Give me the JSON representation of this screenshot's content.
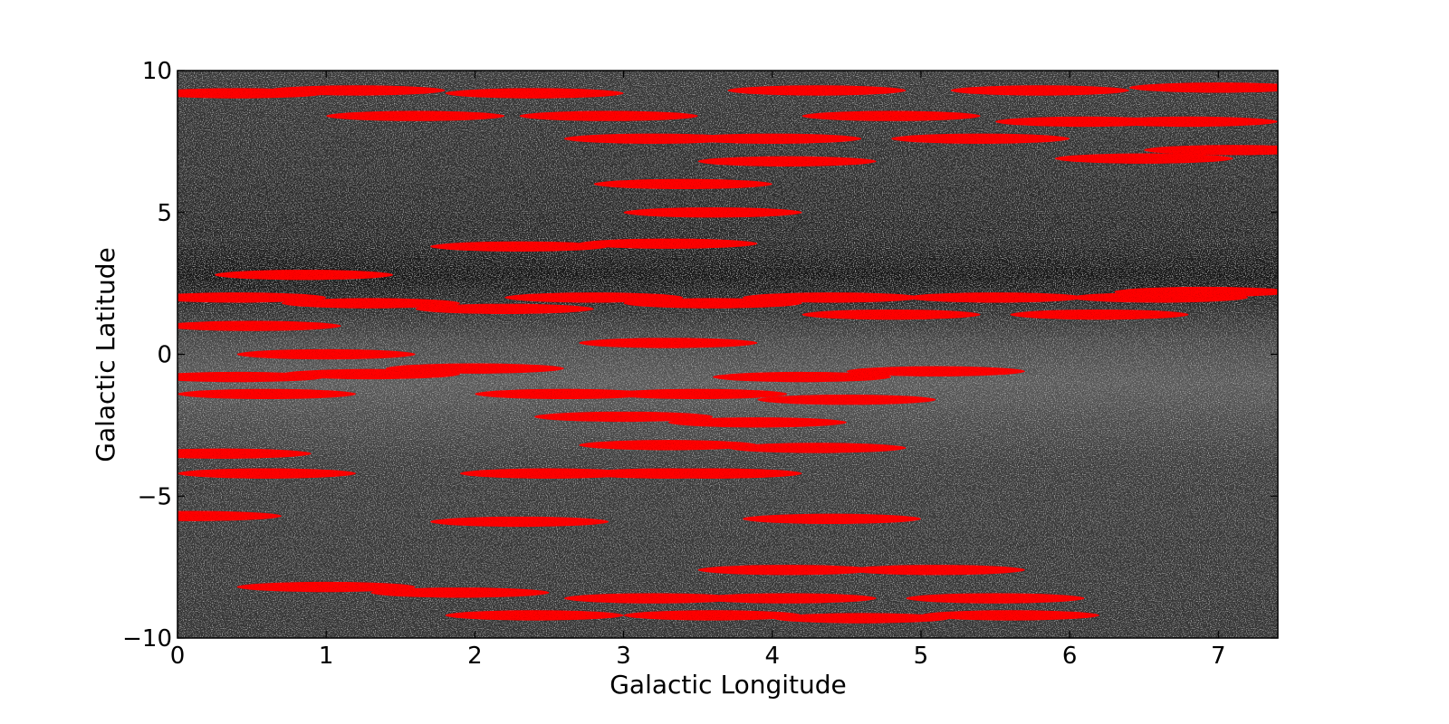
{
  "chart_data": {
    "type": "scatter",
    "title": "",
    "xlabel": "Galactic Longitude",
    "ylabel": "Galactic Latitude",
    "xlim": [
      0,
      7.4
    ],
    "ylim": [
      -10,
      10
    ],
    "x_ticks": [
      0,
      1,
      2,
      3,
      4,
      5,
      6,
      7
    ],
    "x_tick_labels": [
      "0",
      "1",
      "2",
      "3",
      "4",
      "5",
      "6",
      "7"
    ],
    "y_ticks": [
      -10,
      -5,
      0,
      5,
      10
    ],
    "y_tick_labels": [
      "−10",
      "−5",
      "0",
      "5",
      "10"
    ],
    "background": "grayscale sky image",
    "overlay_color": "#ff0000",
    "overlay_shape": "ellipse",
    "series": [
      {
        "values": [
          {
            "x": 0.4,
            "y": 9.2,
            "rx": 0.6,
            "ry": 0.6
          },
          {
            "x": 1.2,
            "y": 9.3,
            "rx": 0.6,
            "ry": 0.6
          },
          {
            "x": 1.6,
            "y": 8.4,
            "rx": 0.6,
            "ry": 0.6
          },
          {
            "x": 2.4,
            "y": 9.2,
            "rx": 0.6,
            "ry": 0.6
          },
          {
            "x": 2.9,
            "y": 8.4,
            "rx": 0.6,
            "ry": 0.6
          },
          {
            "x": 3.2,
            "y": 7.6,
            "rx": 0.6,
            "ry": 0.6
          },
          {
            "x": 4.0,
            "y": 7.6,
            "rx": 0.6,
            "ry": 0.6
          },
          {
            "x": 4.1,
            "y": 6.8,
            "rx": 0.6,
            "ry": 0.6
          },
          {
            "x": 3.4,
            "y": 6.0,
            "rx": 0.6,
            "ry": 0.6
          },
          {
            "x": 3.6,
            "y": 5.0,
            "rx": 0.6,
            "ry": 0.6
          },
          {
            "x": 2.3,
            "y": 3.8,
            "rx": 0.6,
            "ry": 0.6
          },
          {
            "x": 3.3,
            "y": 3.9,
            "rx": 0.6,
            "ry": 0.6
          },
          {
            "x": 4.3,
            "y": 9.3,
            "rx": 0.6,
            "ry": 0.6
          },
          {
            "x": 4.8,
            "y": 8.4,
            "rx": 0.6,
            "ry": 0.6
          },
          {
            "x": 5.4,
            "y": 7.6,
            "rx": 0.6,
            "ry": 0.6
          },
          {
            "x": 5.8,
            "y": 9.3,
            "rx": 0.6,
            "ry": 0.6
          },
          {
            "x": 6.1,
            "y": 8.2,
            "rx": 0.6,
            "ry": 0.6
          },
          {
            "x": 6.5,
            "y": 6.9,
            "rx": 0.6,
            "ry": 0.6
          },
          {
            "x": 6.8,
            "y": 8.2,
            "rx": 0.6,
            "ry": 0.6
          },
          {
            "x": 7.0,
            "y": 9.4,
            "rx": 0.6,
            "ry": 0.6
          },
          {
            "x": 7.1,
            "y": 7.2,
            "rx": 0.6,
            "ry": 0.6
          },
          {
            "x": 0.85,
            "y": 2.8,
            "rx": 0.6,
            "ry": 0.6
          },
          {
            "x": 0.4,
            "y": 2.0,
            "rx": 0.6,
            "ry": 0.6
          },
          {
            "x": 0.5,
            "y": 1.0,
            "rx": 0.6,
            "ry": 0.6
          },
          {
            "x": 1.3,
            "y": 1.8,
            "rx": 0.6,
            "ry": 0.6
          },
          {
            "x": 1.0,
            "y": 0.0,
            "rx": 0.6,
            "ry": 0.6
          },
          {
            "x": 2.2,
            "y": 1.6,
            "rx": 0.6,
            "ry": 0.6
          },
          {
            "x": 2.8,
            "y": 2.0,
            "rx": 0.6,
            "ry": 0.6
          },
          {
            "x": 3.3,
            "y": 0.4,
            "rx": 0.6,
            "ry": 0.6
          },
          {
            "x": 3.6,
            "y": 1.8,
            "rx": 0.6,
            "ry": 0.6
          },
          {
            "x": 4.4,
            "y": 2.0,
            "rx": 0.6,
            "ry": 0.6
          },
          {
            "x": 4.8,
            "y": 1.4,
            "rx": 0.6,
            "ry": 0.6
          },
          {
            "x": 5.5,
            "y": 2.0,
            "rx": 0.6,
            "ry": 0.6
          },
          {
            "x": 6.2,
            "y": 1.4,
            "rx": 0.6,
            "ry": 0.6
          },
          {
            "x": 6.6,
            "y": 2.0,
            "rx": 0.6,
            "ry": 0.6
          },
          {
            "x": 6.9,
            "y": 2.2,
            "rx": 0.6,
            "ry": 0.6
          },
          {
            "x": 0.4,
            "y": -0.8,
            "rx": 0.6,
            "ry": 0.6
          },
          {
            "x": 0.6,
            "y": -1.4,
            "rx": 0.6,
            "ry": 0.6
          },
          {
            "x": 1.3,
            "y": -0.7,
            "rx": 0.6,
            "ry": 0.6
          },
          {
            "x": 2.0,
            "y": -0.5,
            "rx": 0.6,
            "ry": 0.6
          },
          {
            "x": 2.6,
            "y": -1.4,
            "rx": 0.6,
            "ry": 0.6
          },
          {
            "x": 3.0,
            "y": -2.2,
            "rx": 0.6,
            "ry": 0.6
          },
          {
            "x": 3.5,
            "y": -1.4,
            "rx": 0.6,
            "ry": 0.6
          },
          {
            "x": 4.2,
            "y": -0.8,
            "rx": 0.6,
            "ry": 0.6
          },
          {
            "x": 4.5,
            "y": -1.6,
            "rx": 0.6,
            "ry": 0.6
          },
          {
            "x": 5.1,
            "y": -0.6,
            "rx": 0.6,
            "ry": 0.6
          },
          {
            "x": 3.9,
            "y": -2.4,
            "rx": 0.6,
            "ry": 0.6
          },
          {
            "x": 3.3,
            "y": -3.2,
            "rx": 0.6,
            "ry": 0.6
          },
          {
            "x": 4.3,
            "y": -3.3,
            "rx": 0.6,
            "ry": 0.6
          },
          {
            "x": 2.5,
            "y": -4.2,
            "rx": 0.6,
            "ry": 0.6
          },
          {
            "x": 3.3,
            "y": -4.2,
            "rx": 0.6,
            "ry": 0.6
          },
          {
            "x": 3.6,
            "y": -4.2,
            "rx": 0.6,
            "ry": 0.6
          },
          {
            "x": 0.3,
            "y": -3.5,
            "rx": 0.6,
            "ry": 0.6
          },
          {
            "x": 0.6,
            "y": -4.2,
            "rx": 0.6,
            "ry": 0.6
          },
          {
            "x": 0.1,
            "y": -5.7,
            "rx": 0.6,
            "ry": 0.6
          },
          {
            "x": 2.3,
            "y": -5.9,
            "rx": 0.6,
            "ry": 0.6
          },
          {
            "x": 4.4,
            "y": -5.8,
            "rx": 0.6,
            "ry": 0.6
          },
          {
            "x": 1.0,
            "y": -8.2,
            "rx": 0.6,
            "ry": 0.6
          },
          {
            "x": 1.9,
            "y": -8.4,
            "rx": 0.6,
            "ry": 0.6
          },
          {
            "x": 2.4,
            "y": -9.2,
            "rx": 0.6,
            "ry": 0.6
          },
          {
            "x": 3.2,
            "y": -8.6,
            "rx": 0.6,
            "ry": 0.6
          },
          {
            "x": 3.6,
            "y": -9.2,
            "rx": 0.6,
            "ry": 0.6
          },
          {
            "x": 4.1,
            "y": -7.6,
            "rx": 0.6,
            "ry": 0.6
          },
          {
            "x": 4.1,
            "y": -8.6,
            "rx": 0.6,
            "ry": 0.6
          },
          {
            "x": 4.6,
            "y": -9.3,
            "rx": 0.6,
            "ry": 0.6
          },
          {
            "x": 5.1,
            "y": -7.6,
            "rx": 0.6,
            "ry": 0.6
          },
          {
            "x": 5.5,
            "y": -8.6,
            "rx": 0.6,
            "ry": 0.6
          },
          {
            "x": 5.6,
            "y": -9.2,
            "rx": 0.6,
            "ry": 0.6
          }
        ]
      }
    ],
    "grid": false,
    "legend": "none"
  }
}
